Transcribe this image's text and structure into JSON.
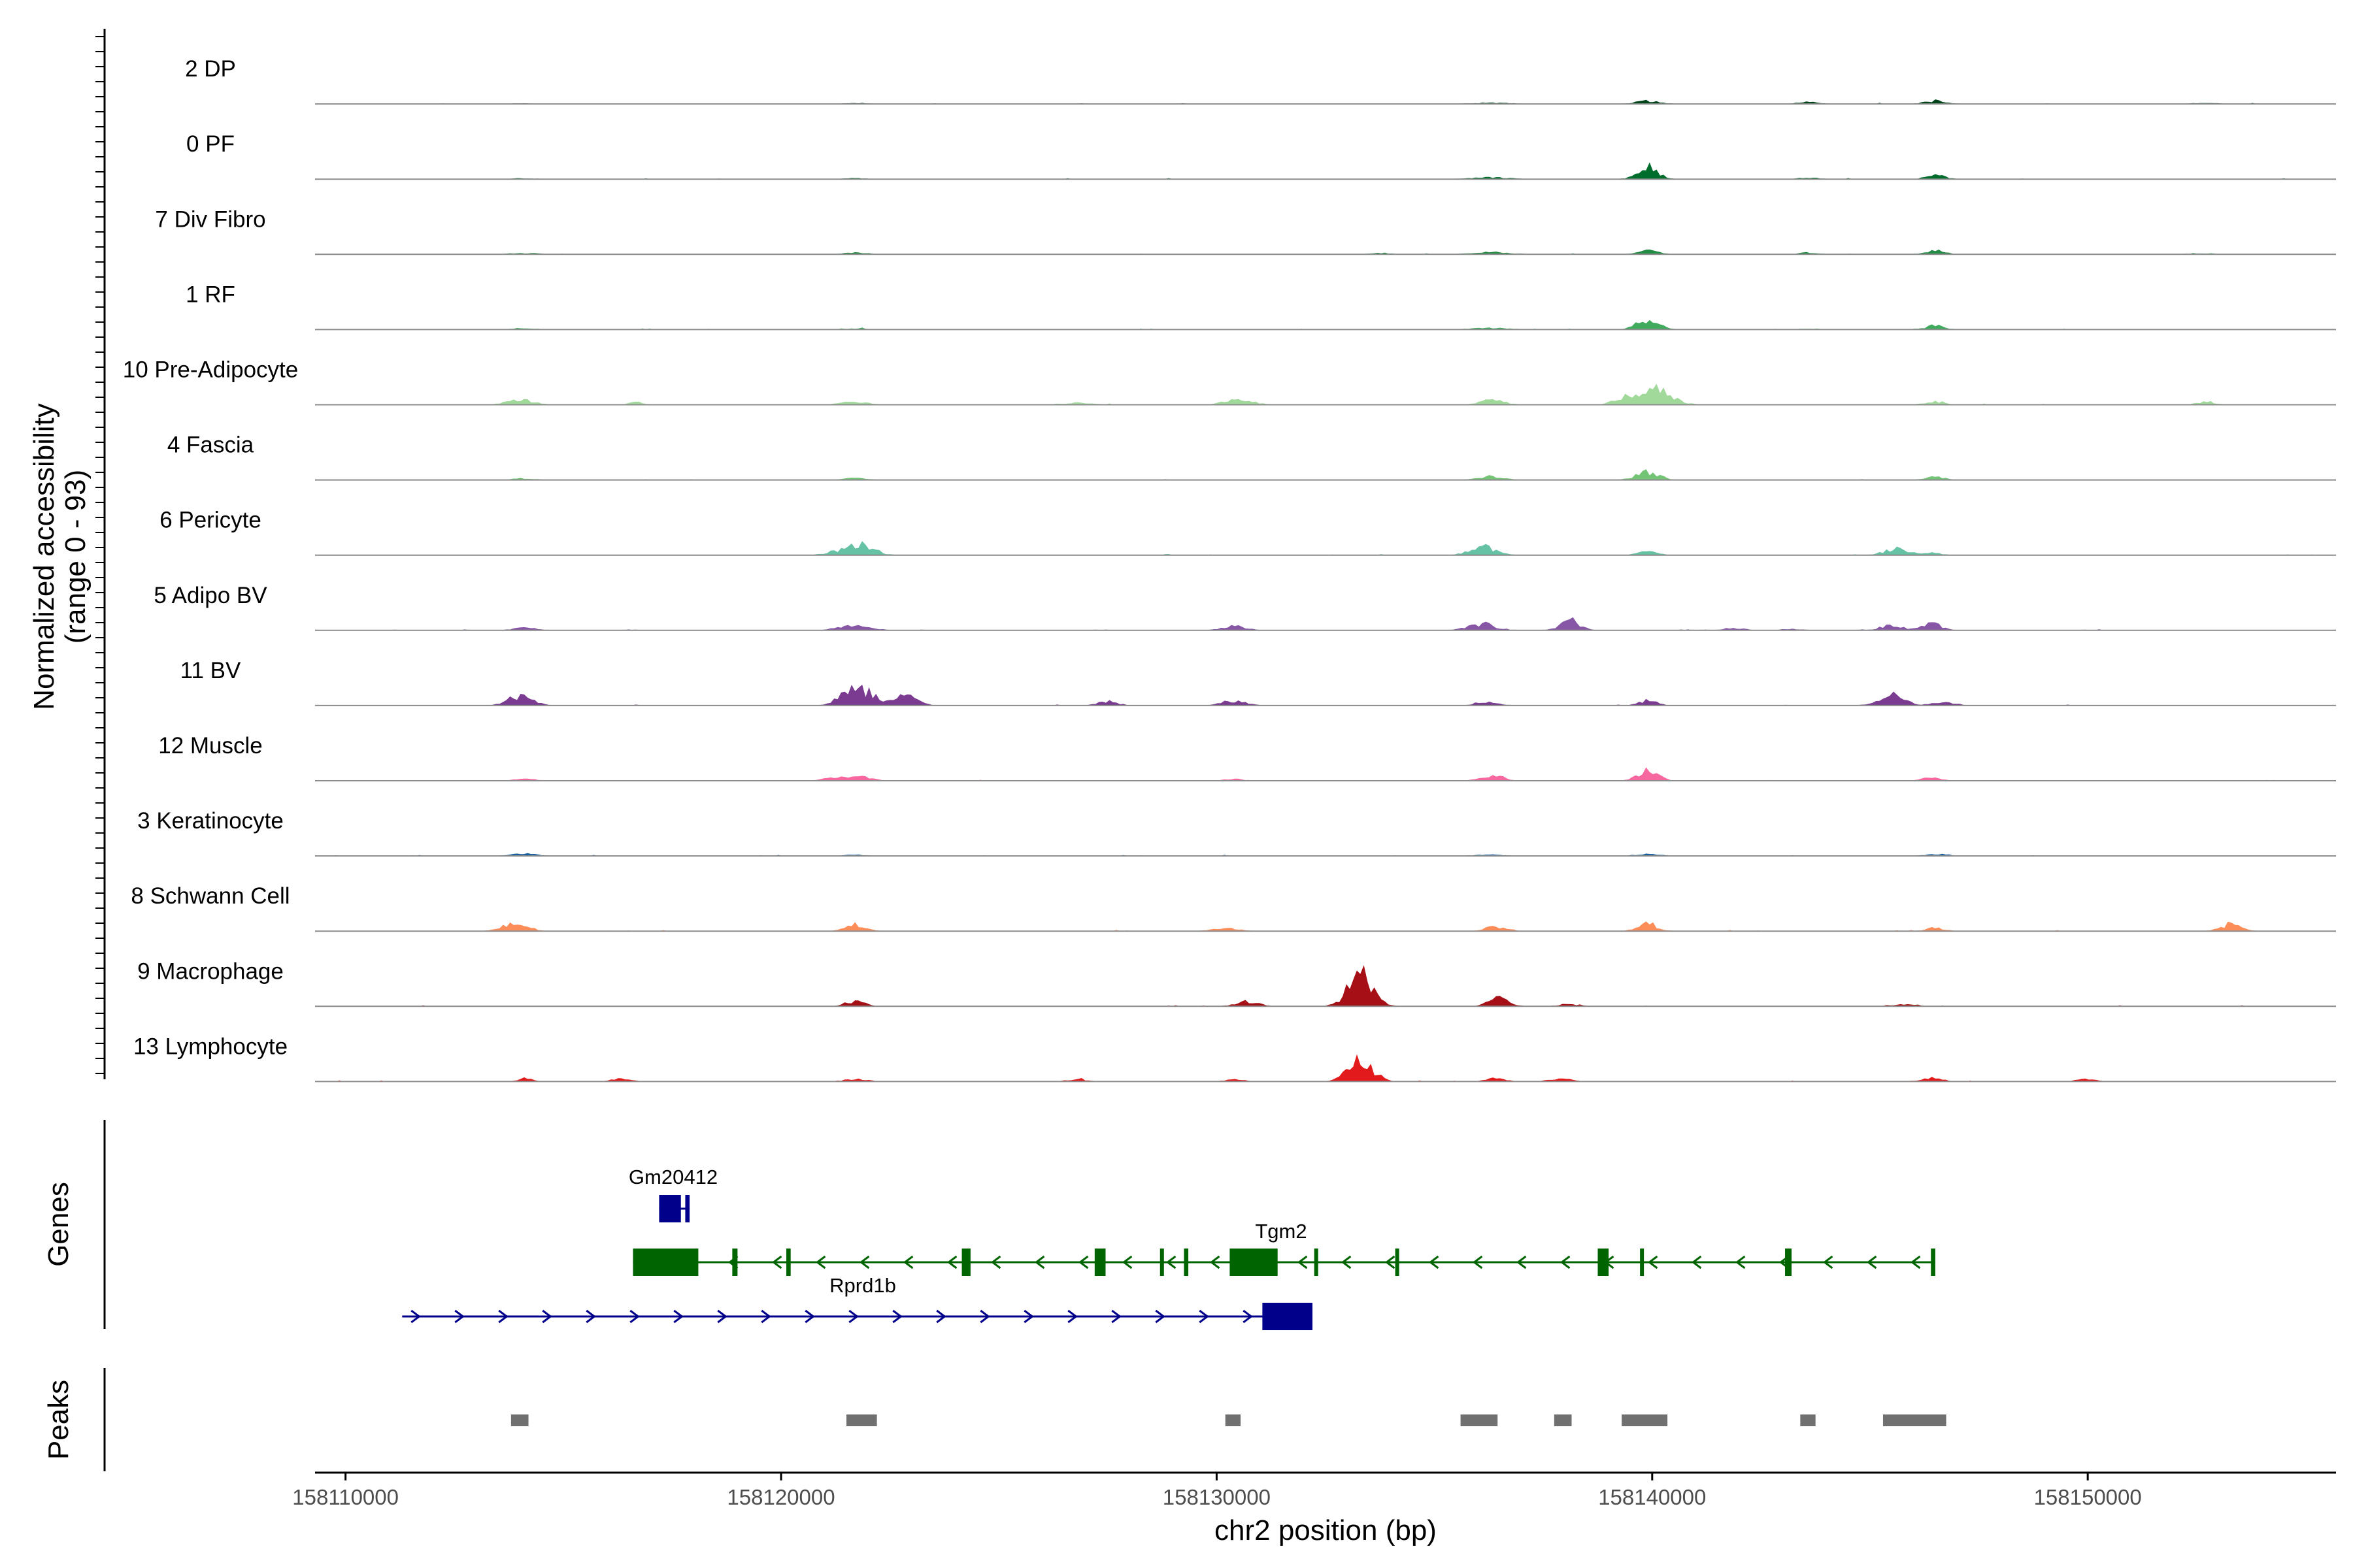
{
  "chart_data": {
    "type": "area",
    "xlabel": "chr2 position (bp)",
    "ylabel": "Normalized accessibility",
    "ylabel_sub": "(range 0 - 93)",
    "xlim": [
      158109300,
      158155700
    ],
    "x_ticks": [
      158110000,
      158120000,
      158130000,
      158140000,
      158150000
    ],
    "x_tick_labels": [
      "158110000",
      "158120000",
      "158130000",
      "158140000",
      "158150000"
    ],
    "ylim": [
      0,
      93
    ],
    "grid": false,
    "series": [
      {
        "name": "2 DP",
        "color": "#00441b",
        "peaks": [
          [
            158114100,
            0.6,
            200
          ],
          [
            158121700,
            1.0,
            220
          ],
          [
            158136300,
            1.2,
            400
          ],
          [
            158139900,
            4.0,
            250
          ],
          [
            158143600,
            3.0,
            200
          ],
          [
            158146500,
            4.0,
            220
          ],
          [
            158152700,
            1.2,
            250
          ]
        ]
      },
      {
        "name": "0 PF",
        "color": "#006d2c",
        "peaks": [
          [
            158114100,
            1.0,
            250
          ],
          [
            158121700,
            1.0,
            220
          ],
          [
            158136300,
            2.0,
            400
          ],
          [
            158139900,
            15.0,
            230
          ],
          [
            158143600,
            2.0,
            200
          ],
          [
            158146500,
            5.0,
            200
          ]
        ]
      },
      {
        "name": "7 Div Fibro",
        "color": "#238b45",
        "peaks": [
          [
            158114100,
            1.5,
            300
          ],
          [
            158121700,
            2.0,
            250
          ],
          [
            158133800,
            1.5,
            250
          ],
          [
            158136300,
            2.5,
            400
          ],
          [
            158139900,
            4.5,
            220
          ],
          [
            158143600,
            2.0,
            200
          ],
          [
            158146500,
            4.5,
            220
          ],
          [
            158152600,
            1.2,
            250
          ]
        ]
      },
      {
        "name": "1 RF",
        "color": "#41ab5d",
        "peaks": [
          [
            158114100,
            2.0,
            220
          ],
          [
            158121700,
            1.2,
            200
          ],
          [
            158136300,
            2.0,
            400
          ],
          [
            158139900,
            12.0,
            250
          ],
          [
            158143600,
            1.0,
            200
          ],
          [
            158146500,
            5.0,
            200
          ]
        ]
      },
      {
        "name": "10 Pre-Adipocyte",
        "color": "#a1d99b",
        "peaks": [
          [
            158114000,
            7.0,
            280
          ],
          [
            158116700,
            3.0,
            160
          ],
          [
            158121700,
            4.5,
            280
          ],
          [
            158126800,
            2.0,
            350
          ],
          [
            158130500,
            6.0,
            320
          ],
          [
            158136300,
            7.0,
            260
          ],
          [
            158139300,
            6.0,
            200
          ],
          [
            158140000,
            20.0,
            380
          ],
          [
            158146500,
            4.0,
            220
          ],
          [
            158152700,
            4.0,
            180
          ]
        ]
      },
      {
        "name": "4 Fascia",
        "color": "#74c476",
        "peaks": [
          [
            158114100,
            2.0,
            220
          ],
          [
            158121700,
            2.5,
            220
          ],
          [
            158136300,
            5.0,
            260
          ],
          [
            158139900,
            10.0,
            250
          ],
          [
            158146500,
            4.0,
            200
          ]
        ]
      },
      {
        "name": "6 Pericyte",
        "color": "#66c2a4",
        "peaks": [
          [
            158121400,
            5.5,
            300
          ],
          [
            158121900,
            12.0,
            260
          ],
          [
            158136100,
            11.0,
            280
          ],
          [
            158139900,
            4.0,
            220
          ],
          [
            158145600,
            8.0,
            260
          ],
          [
            158146400,
            3.0,
            200
          ]
        ]
      },
      {
        "name": "5 Adipo BV",
        "color": "#8856a7",
        "peaks": [
          [
            158114100,
            3.0,
            250
          ],
          [
            158121700,
            8.0,
            320
          ],
          [
            158130400,
            5.0,
            250
          ],
          [
            158136100,
            8.0,
            300
          ],
          [
            158138100,
            12.0,
            220
          ],
          [
            158141900,
            3.0,
            220
          ],
          [
            158143200,
            2.0,
            200
          ],
          [
            158145500,
            6.0,
            260
          ],
          [
            158146400,
            9.0,
            220
          ]
        ]
      },
      {
        "name": "11 BV",
        "color": "#7a3b91",
        "peaks": [
          [
            158114000,
            11.0,
            280
          ],
          [
            158121600,
            14.0,
            300
          ],
          [
            158122000,
            11.0,
            280
          ],
          [
            158122900,
            15.0,
            220
          ],
          [
            158127500,
            5.0,
            220
          ],
          [
            158130400,
            6.5,
            250
          ],
          [
            158136200,
            4.5,
            250
          ],
          [
            158139900,
            6.0,
            200
          ],
          [
            158145500,
            13.0,
            280
          ],
          [
            158146700,
            4.0,
            260
          ]
        ]
      },
      {
        "name": "12 Muscle",
        "color": "#f768a1",
        "peaks": [
          [
            158114100,
            3.5,
            220
          ],
          [
            158121200,
            4.0,
            220
          ],
          [
            158121800,
            5.5,
            250
          ],
          [
            158130400,
            2.0,
            200
          ],
          [
            158136300,
            7.0,
            260
          ],
          [
            158139900,
            12.0,
            230
          ],
          [
            158146400,
            3.5,
            200
          ]
        ]
      },
      {
        "name": "3 Keratinocyte",
        "color": "#1a5fa0",
        "peaks": [
          [
            158114100,
            3.0,
            250
          ],
          [
            158121700,
            1.5,
            200
          ],
          [
            158136300,
            1.5,
            300
          ],
          [
            158139900,
            3.0,
            220
          ],
          [
            158146500,
            2.5,
            200
          ]
        ]
      },
      {
        "name": "8 Schwann Cell",
        "color": "#fc8d59",
        "peaks": [
          [
            158113900,
            11.0,
            260
          ],
          [
            158121700,
            8.0,
            220
          ],
          [
            158130200,
            3.0,
            300
          ],
          [
            158136400,
            6.0,
            220
          ],
          [
            158139900,
            9.0,
            220
          ],
          [
            158146500,
            4.0,
            200
          ],
          [
            158153300,
            9.0,
            220
          ]
        ]
      },
      {
        "name": "9 Macrophage",
        "color": "#a50f15",
        "peaks": [
          [
            158121700,
            7.0,
            200
          ],
          [
            158130700,
            6.0,
            250
          ],
          [
            158133300,
            38.0,
            280
          ],
          [
            158136500,
            11.0,
            220
          ],
          [
            158138100,
            3.0,
            220
          ],
          [
            158145800,
            3.0,
            250
          ]
        ]
      },
      {
        "name": "13 Lymphocyte",
        "color": "#e31a1c",
        "peaks": [
          [
            158114100,
            4.0,
            150
          ],
          [
            158116300,
            4.0,
            200
          ],
          [
            158121700,
            3.0,
            250
          ],
          [
            158126800,
            3.0,
            200
          ],
          [
            158130400,
            3.0,
            200
          ],
          [
            158133300,
            26.0,
            280
          ],
          [
            158136400,
            4.0,
            200
          ],
          [
            158137900,
            4.0,
            220
          ],
          [
            158146400,
            5.0,
            220
          ],
          [
            158150000,
            4.0,
            200
          ]
        ]
      }
    ],
    "genes_label": "Genes",
    "peaks_label": "Peaks",
    "genes": [
      {
        "name": "Gm20412",
        "color": "#00008b",
        "start": 158117200,
        "end": 158117900,
        "strand": "+",
        "exons": [
          [
            158117200,
            158117700
          ],
          [
            158117800,
            158117900
          ]
        ]
      },
      {
        "name": "Tgm2",
        "color": "#006400",
        "start": 158116600,
        "end": 158146500,
        "strand": "-",
        "exons": [
          [
            158116600,
            158118100
          ],
          [
            158118880,
            158119000
          ],
          [
            158120120,
            158120220
          ],
          [
            158124150,
            158124350
          ],
          [
            158127200,
            158127450
          ],
          [
            158128700,
            158128780
          ],
          [
            158129250,
            158129350
          ],
          [
            158130300,
            158131400
          ],
          [
            158132240,
            158132320
          ],
          [
            158134100,
            158134180
          ],
          [
            158138750,
            158139000
          ],
          [
            158139720,
            158139770
          ],
          [
            158143050,
            158143200
          ],
          [
            158146400,
            158146500
          ]
        ]
      },
      {
        "name": "Rprd1b",
        "color": "#00008b",
        "start": 158111300,
        "end": 158132200,
        "strand": "+",
        "exons": [
          [
            158131050,
            158132200
          ]
        ]
      }
    ],
    "peaks": [
      [
        158113800,
        158114200
      ],
      [
        158121500,
        158122200
      ],
      [
        158130200,
        158130550
      ],
      [
        158135600,
        158136450
      ],
      [
        158137750,
        158138150
      ],
      [
        158139300,
        158140350
      ],
      [
        158143400,
        158143750
      ],
      [
        158145300,
        158146750
      ]
    ]
  }
}
